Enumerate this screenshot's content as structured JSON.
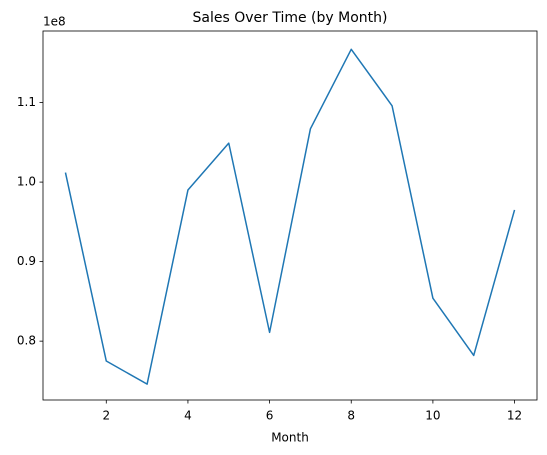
{
  "chart_data": {
    "type": "line",
    "title": "Sales Over Time (by Month)",
    "x_label": "Month",
    "y_offset_label": "1e8",
    "x": [
      1,
      2,
      3,
      4,
      5,
      6,
      7,
      8,
      9,
      10,
      11,
      12
    ],
    "series": [
      {
        "color": "#1f77b4",
        "values": [
          1.012,
          0.775,
          0.746,
          0.99,
          1.049,
          0.811,
          1.067,
          1.167,
          1.096,
          0.854,
          0.782,
          0.965
        ]
      }
    ],
    "xlim": [
      0.45,
      12.55
    ],
    "xticks": [
      2,
      4,
      6,
      8,
      10,
      12
    ],
    "ylim": [
      0.726,
      1.19
    ],
    "yticks": [
      0.8,
      0.9,
      {
        "value": 1,
        "label": "1.0"
      },
      1.1
    ],
    "grid": false
  }
}
